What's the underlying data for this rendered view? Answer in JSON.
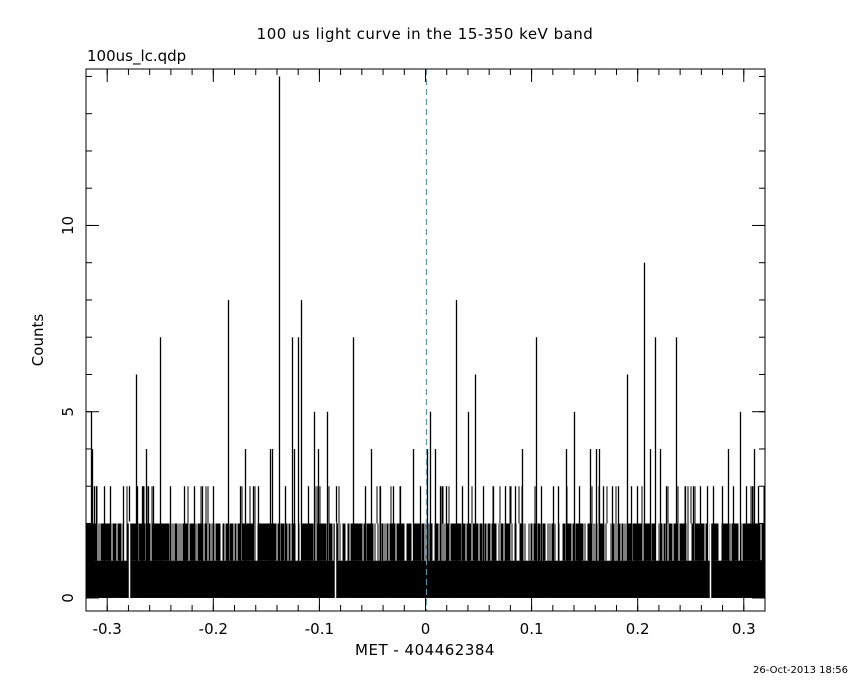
{
  "chart_data": {
    "type": "bar",
    "title": "100 us light curve in the 15-350 keV band",
    "file_label": "100us_lc.qdp",
    "xlabel": "MET - 404462384",
    "ylabel": "Counts",
    "timestamp": "26-Oct-2013 18:56",
    "xlim": [
      -0.32,
      0.32
    ],
    "ylim": [
      -0.35,
      14.2
    ],
    "x_ticks": [
      {
        "v": -0.3,
        "label": "-0.3"
      },
      {
        "v": -0.2,
        "label": "-0.2"
      },
      {
        "v": -0.1,
        "label": "-0.1"
      },
      {
        "v": 0.0,
        "label": "0"
      },
      {
        "v": 0.1,
        "label": "0.1"
      },
      {
        "v": 0.2,
        "label": "0.2"
      },
      {
        "v": 0.3,
        "label": "0.3"
      }
    ],
    "y_ticks": [
      {
        "v": 0,
        "label": "0"
      },
      {
        "v": 5,
        "label": "5"
      },
      {
        "v": 10,
        "label": "10"
      }
    ],
    "grid": false,
    "trigger_line_x": 0.0,
    "trigger_line_color": "#3aa0c8",
    "baseline_max_counts": 2,
    "bin_width": 0.0001,
    "spikes": [
      {
        "x": -0.315,
        "y": 5
      },
      {
        "x": -0.314,
        "y": 4
      },
      {
        "x": -0.3125,
        "y": 3
      },
      {
        "x": -0.311,
        "y": 3
      },
      {
        "x": -0.303,
        "y": 3
      },
      {
        "x": -0.297,
        "y": 3
      },
      {
        "x": -0.285,
        "y": 3
      },
      {
        "x": -0.279,
        "y": 3
      },
      {
        "x": -0.273,
        "y": 6
      },
      {
        "x": -0.2715,
        "y": 3
      },
      {
        "x": -0.2675,
        "y": 3
      },
      {
        "x": -0.2635,
        "y": 4
      },
      {
        "x": -0.262,
        "y": 3
      },
      {
        "x": -0.2565,
        "y": 3
      },
      {
        "x": -0.2505,
        "y": 7
      },
      {
        "x": -0.241,
        "y": 3
      },
      {
        "x": -0.228,
        "y": 3
      },
      {
        "x": -0.218,
        "y": 3
      },
      {
        "x": -0.211,
        "y": 3
      },
      {
        "x": -0.2,
        "y": 3
      },
      {
        "x": -0.1865,
        "y": 8
      },
      {
        "x": -0.1745,
        "y": 3
      },
      {
        "x": -0.1705,
        "y": 4
      },
      {
        "x": -0.163,
        "y": 3
      },
      {
        "x": -0.1575,
        "y": 3
      },
      {
        "x": -0.1465,
        "y": 4
      },
      {
        "x": -0.1445,
        "y": 4
      },
      {
        "x": -0.1385,
        "y": 14
      },
      {
        "x": -0.132,
        "y": 3
      },
      {
        "x": -0.1255,
        "y": 7
      },
      {
        "x": -0.1235,
        "y": 4
      },
      {
        "x": -0.12,
        "y": 7
      },
      {
        "x": -0.1175,
        "y": 8
      },
      {
        "x": -0.1105,
        "y": 3
      },
      {
        "x": -0.1055,
        "y": 5
      },
      {
        "x": -0.1015,
        "y": 4
      },
      {
        "x": -0.093,
        "y": 5
      },
      {
        "x": -0.0845,
        "y": 3
      },
      {
        "x": -0.0685,
        "y": 7
      },
      {
        "x": -0.057,
        "y": 3
      },
      {
        "x": -0.0515,
        "y": 4
      },
      {
        "x": -0.0425,
        "y": 3
      },
      {
        "x": -0.031,
        "y": 3
      },
      {
        "x": -0.0245,
        "y": 3
      },
      {
        "x": -0.0115,
        "y": 4
      },
      {
        "x": -0.005,
        "y": 3
      },
      {
        "x": 0.0015,
        "y": 4
      },
      {
        "x": 0.0045,
        "y": 5
      },
      {
        "x": 0.0085,
        "y": 4
      },
      {
        "x": 0.0135,
        "y": 3
      },
      {
        "x": 0.019,
        "y": 3
      },
      {
        "x": 0.0285,
        "y": 8
      },
      {
        "x": 0.0345,
        "y": 3
      },
      {
        "x": 0.0405,
        "y": 5
      },
      {
        "x": 0.0465,
        "y": 6
      },
      {
        "x": 0.0545,
        "y": 3
      },
      {
        "x": 0.064,
        "y": 3
      },
      {
        "x": 0.0745,
        "y": 3
      },
      {
        "x": 0.0845,
        "y": 3
      },
      {
        "x": 0.0905,
        "y": 4
      },
      {
        "x": 0.104,
        "y": 7
      },
      {
        "x": 0.109,
        "y": 3
      },
      {
        "x": 0.1205,
        "y": 3
      },
      {
        "x": 0.125,
        "y": 3
      },
      {
        "x": 0.1325,
        "y": 4
      },
      {
        "x": 0.1395,
        "y": 5
      },
      {
        "x": 0.145,
        "y": 3
      },
      {
        "x": 0.155,
        "y": 4
      },
      {
        "x": 0.1605,
        "y": 4
      },
      {
        "x": 0.164,
        "y": 4
      },
      {
        "x": 0.1675,
        "y": 3
      },
      {
        "x": 0.1755,
        "y": 3
      },
      {
        "x": 0.181,
        "y": 3
      },
      {
        "x": 0.1895,
        "y": 6
      },
      {
        "x": 0.1935,
        "y": 3
      },
      {
        "x": 0.1995,
        "y": 3
      },
      {
        "x": 0.206,
        "y": 9
      },
      {
        "x": 0.2115,
        "y": 4
      },
      {
        "x": 0.2165,
        "y": 7
      },
      {
        "x": 0.2215,
        "y": 4
      },
      {
        "x": 0.2265,
        "y": 3
      },
      {
        "x": 0.2365,
        "y": 7
      },
      {
        "x": 0.245,
        "y": 3
      },
      {
        "x": 0.2525,
        "y": 3
      },
      {
        "x": 0.2585,
        "y": 3
      },
      {
        "x": 0.2655,
        "y": 3
      },
      {
        "x": 0.271,
        "y": 3
      },
      {
        "x": 0.2795,
        "y": 3
      },
      {
        "x": 0.2855,
        "y": 4
      },
      {
        "x": 0.29,
        "y": 3
      },
      {
        "x": 0.2965,
        "y": 5
      },
      {
        "x": 0.3025,
        "y": 3
      },
      {
        "x": 0.3075,
        "y": 3
      },
      {
        "x": 0.3095,
        "y": 4
      },
      {
        "x": 0.3135,
        "y": 3
      }
    ],
    "gaps_x": [
      -0.2795,
      -0.0855,
      0.268
    ]
  }
}
